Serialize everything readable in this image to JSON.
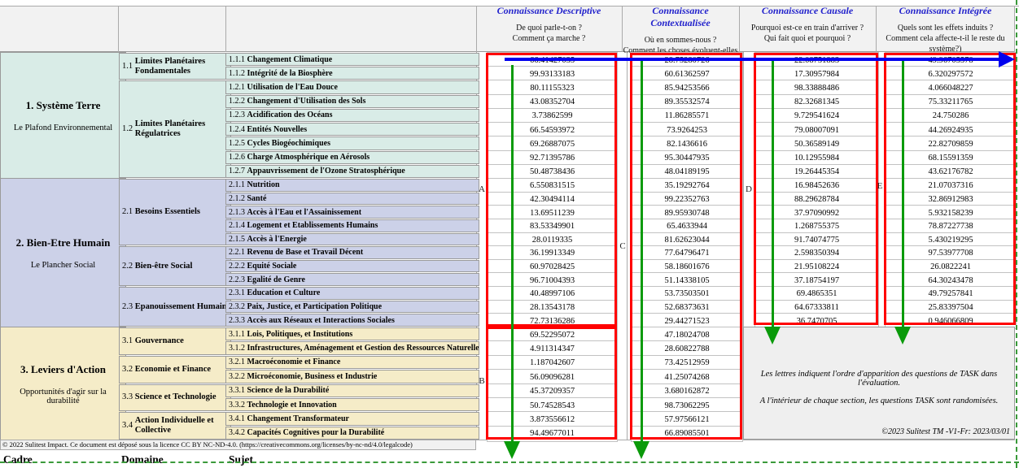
{
  "page": {
    "footer": "© 2022 Sulitest Impact. Ce document est déposé sous la licence CC BY NC-ND-4.0. (https://creativecommons.org/licenses/by-nc-nd/4.0/legalcode)"
  },
  "columns": {
    "cadre_label": "Cadre",
    "domaine_label": "Domaine",
    "sujet_label": "Sujet",
    "knowledge": [
      {
        "title": "Connaissance Descriptive",
        "questions": [
          "De quoi parle-t-on ?",
          "Comment ça marche ?"
        ]
      },
      {
        "title": "Connaissance Contextualisée",
        "questions": [
          "Où en sommes-nous ?",
          "Comment les choses évoluent-elles ?"
        ]
      },
      {
        "title": "Connaissance Causale",
        "questions": [
          "Pourquoi est-ce en train d'arriver ?",
          "Qui fait quoi et pourquoi ?"
        ]
      },
      {
        "title": "Connaissance Intégrée",
        "questions": [
          "Quels sont les effets induits ?",
          "Comment cela affecte-t-il le reste du système?)"
        ]
      }
    ]
  },
  "sections": [
    {
      "cadre_title": "1. Système Terre",
      "cadre_subtitle": "Le Plafond Environnemental",
      "domaines": [
        {
          "num": "1.1",
          "name": "Limites Planétaires Fondamentales",
          "rows": 2
        },
        {
          "num": "1.2",
          "name": "Limites Planétaires Régulatrices",
          "rows": 7
        }
      ],
      "rows": [
        {
          "num": "1.1.1",
          "name": "Changement Climatique",
          "values": [
            "66.41427035",
            "28.75280726",
            "22.08751883",
            "49.96705578"
          ]
        },
        {
          "num": "1.1.2",
          "name": "Intégrité de la Biosphère",
          "values": [
            "99.93133183",
            "60.61362597",
            "17.30957984",
            "6.320297572"
          ]
        },
        {
          "num": "1.2.1",
          "name": "Utilisation de l'Eau Douce",
          "values": [
            "80.11155323",
            "85.94253566",
            "98.33888486",
            "4.066048227"
          ]
        },
        {
          "num": "1.2.2",
          "name": "Changement d'Utilisation des Sols",
          "values": [
            "43.08352704",
            "89.35532574",
            "82.32681345",
            "75.33211765"
          ]
        },
        {
          "num": "1.2.3",
          "name": "Acidification des Océans",
          "values": [
            "3.73862599",
            "11.86285571",
            "9.729541624",
            "24.750286"
          ]
        },
        {
          "num": "1.2.4",
          "name": "Entités Nouvelles",
          "values": [
            "66.54593972",
            "73.9264253",
            "79.08007091",
            "44.26924935"
          ]
        },
        {
          "num": "1.2.5",
          "name": "Cycles Biogéochimiques",
          "values": [
            "69.26887075",
            "82.1436616",
            "50.36589149",
            "22.82709859"
          ]
        },
        {
          "num": "1.2.6",
          "name": "Charge Atmosphérique en Aérosols",
          "values": [
            "92.71395786",
            "95.30447935",
            "10.12955984",
            "68.15591359"
          ]
        },
        {
          "num": "1.2.7",
          "name": "Appauvrissement de l'Ozone Stratosphérique",
          "values": [
            "50.48738436",
            "48.04189195",
            "19.26445354",
            "43.62176782"
          ]
        }
      ]
    },
    {
      "cadre_title": "2. Bien-Etre Humain",
      "cadre_subtitle": "Le Plancher Social",
      "domaines": [
        {
          "num": "2.1",
          "name": "Besoins Essentiels",
          "rows": 5
        },
        {
          "num": "2.2",
          "name": "Bien-être Social",
          "rows": 3
        },
        {
          "num": "2.3",
          "name": "Epanouissement Humain",
          "rows": 3
        }
      ],
      "rows": [
        {
          "num": "2.1.1",
          "name": "Nutrition",
          "values": [
            "6.550831515",
            "35.19292764",
            "16.98452636",
            "21.07037316"
          ]
        },
        {
          "num": "2.1.2",
          "name": "Santé",
          "values": [
            "42.30494114",
            "99.22352763",
            "88.29628784",
            "32.86912983"
          ]
        },
        {
          "num": "2.1.3",
          "name": "Accès à l'Eau et l'Assainissement",
          "values": [
            "13.69511239",
            "89.95930748",
            "37.97090992",
            "5.932158239"
          ]
        },
        {
          "num": "2.1.4",
          "name": "Logement et Etablissements Humains",
          "values": [
            "83.53349901",
            "65.4633944",
            "1.268755375",
            "78.87227738"
          ]
        },
        {
          "num": "2.1.5",
          "name": "Accès à l'Energie",
          "values": [
            "28.0119335",
            "81.62623044",
            "91.74074775",
            "5.430219295"
          ]
        },
        {
          "num": "2.2.1",
          "name": "Revenu de Base et Travail Décent",
          "values": [
            "36.19913349",
            "77.64796471",
            "2.598350394",
            "97.53977708"
          ]
        },
        {
          "num": "2.2.2",
          "name": "Equité Sociale",
          "values": [
            "60.97028425",
            "58.18601676",
            "21.95108224",
            "26.0822241"
          ]
        },
        {
          "num": "2.2.3",
          "name": "Egalité de Genre",
          "values": [
            "96.71004393",
            "51.14338105",
            "37.18754197",
            "64.30243478"
          ]
        },
        {
          "num": "2.3.1",
          "name": "Education et Culture",
          "values": [
            "40.48997106",
            "53.73503501",
            "69.4865351",
            "49.79257841"
          ]
        },
        {
          "num": "2.3.2",
          "name": "Paix, Justice, et Participation Politique",
          "values": [
            "28.13543178",
            "52.68373631",
            "64.67333811",
            "25.83397504"
          ]
        },
        {
          "num": "2.3.3",
          "name": "Accès aux Réseaux et Interactions Sociales",
          "values": [
            "72.73136286",
            "29.44271523",
            "36.7470705",
            "0.946066809"
          ]
        }
      ]
    },
    {
      "cadre_title": "3. Leviers d'Action",
      "cadre_subtitle": "Opportunités d'agir sur la durabilité",
      "domaines": [
        {
          "num": "3.1",
          "name": "Gouvernance",
          "rows": 2
        },
        {
          "num": "3.2",
          "name": "Economie et Finance",
          "rows": 2
        },
        {
          "num": "3.3",
          "name": "Science et Technologie",
          "rows": 2
        },
        {
          "num": "3.4",
          "name": "Action Individuelle et Collective",
          "rows": 2
        }
      ],
      "rows": [
        {
          "num": "3.1.1",
          "name": "Lois, Politiques, et Institutions",
          "values": [
            "69.52295072",
            "47.18024708"
          ]
        },
        {
          "num": "3.1.2",
          "name": "Infrastructures, Aménagement et Gestion des Ressources Naturelles",
          "values": [
            "4.911314347",
            "28.60822788"
          ]
        },
        {
          "num": "3.2.1",
          "name": "Macroéconomie et Finance",
          "values": [
            "1.187042607",
            "73.42512959"
          ]
        },
        {
          "num": "3.2.2",
          "name": "Microéconomie, Business et Industrie",
          "values": [
            "56.09096281",
            "41.25074268"
          ]
        },
        {
          "num": "3.3.1",
          "name": "Science de la Durabilité",
          "values": [
            "45.37209357",
            "3.680162872"
          ]
        },
        {
          "num": "3.3.2",
          "name": "Technologie et Innovation",
          "values": [
            "50.74528543",
            "98.73062295"
          ]
        },
        {
          "num": "3.4.1",
          "name": "Changement Transformateur",
          "values": [
            "3.873556612",
            "57.97566121"
          ]
        },
        {
          "num": "3.4.2",
          "name": "Capacités Cognitives pour la Durabilité",
          "values": [
            "94.49677011",
            "66.89085501"
          ]
        }
      ]
    }
  ],
  "note": {
    "line1": "Les lettres indiquent l'ordre d'apparition des questions de TASK dans l'évaluation.",
    "line2": "A l'intérieur de chaque section, les questions TASK sont randomisées.",
    "copyright": "©2023 Sulitest TM -V1-Fr: 2023/03/01"
  },
  "annotations": {
    "letters": [
      "A",
      "B",
      "C",
      "D",
      "E"
    ],
    "colors": {
      "box": "#ff0000",
      "arrow_down": "#0a9a0a",
      "arrow_right": "#0000ee",
      "header_title": "#2222cc"
    }
  }
}
